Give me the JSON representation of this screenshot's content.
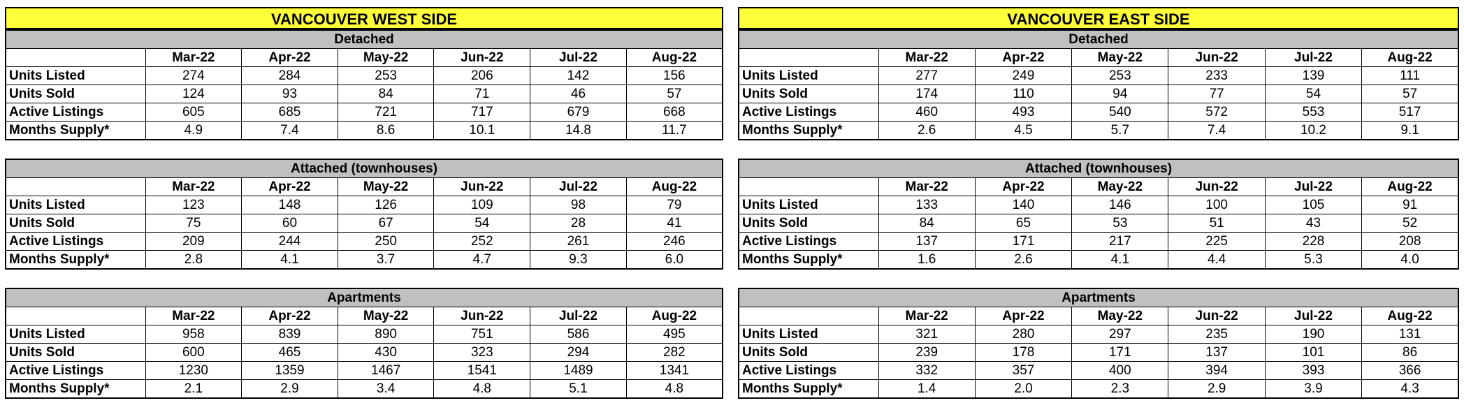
{
  "panels": [
    {
      "title": "VANCOUVER WEST SIDE",
      "sections": [
        {
          "title": "Detached",
          "months": [
            "Mar-22",
            "Apr-22",
            "May-22",
            "Jun-22",
            "Jul-22",
            "Aug-22"
          ],
          "rows": [
            {
              "label": "Units Listed",
              "values": [
                "274",
                "284",
                "253",
                "206",
                "142",
                "156"
              ]
            },
            {
              "label": "Units Sold",
              "values": [
                "124",
                "93",
                "84",
                "71",
                "46",
                "57"
              ]
            },
            {
              "label": "Active Listings",
              "values": [
                "605",
                "685",
                "721",
                "717",
                "679",
                "668"
              ]
            },
            {
              "label": "Months Supply*",
              "values": [
                "4.9",
                "7.4",
                "8.6",
                "10.1",
                "14.8",
                "11.7"
              ]
            }
          ]
        },
        {
          "title": "Attached (townhouses)",
          "months": [
            "Mar-22",
            "Apr-22",
            "May-22",
            "Jun-22",
            "Jul-22",
            "Aug-22"
          ],
          "rows": [
            {
              "label": "Units Listed",
              "values": [
                "123",
                "148",
                "126",
                "109",
                "98",
                "79"
              ]
            },
            {
              "label": "Units Sold",
              "values": [
                "75",
                "60",
                "67",
                "54",
                "28",
                "41"
              ]
            },
            {
              "label": "Active Listings",
              "values": [
                "209",
                "244",
                "250",
                "252",
                "261",
                "246"
              ]
            },
            {
              "label": "Months Supply*",
              "values": [
                "2.8",
                "4.1",
                "3.7",
                "4.7",
                "9.3",
                "6.0"
              ]
            }
          ]
        },
        {
          "title": "Apartments",
          "months": [
            "Mar-22",
            "Apr-22",
            "May-22",
            "Jun-22",
            "Jul-22",
            "Aug-22"
          ],
          "rows": [
            {
              "label": "Units Listed",
              "values": [
                "958",
                "839",
                "890",
                "751",
                "586",
                "495"
              ]
            },
            {
              "label": "Units Sold",
              "values": [
                "600",
                "465",
                "430",
                "323",
                "294",
                "282"
              ]
            },
            {
              "label": "Active Listings",
              "values": [
                "1230",
                "1359",
                "1467",
                "1541",
                "1489",
                "1341"
              ]
            },
            {
              "label": "Months Supply*",
              "values": [
                "2.1",
                "2.9",
                "3.4",
                "4.8",
                "5.1",
                "4.8"
              ]
            }
          ]
        }
      ]
    },
    {
      "title": "VANCOUVER EAST SIDE",
      "sections": [
        {
          "title": "Detached",
          "months": [
            "Mar-22",
            "Apr-22",
            "May-22",
            "Jun-22",
            "Jul-22",
            "Aug-22"
          ],
          "rows": [
            {
              "label": "Units Listed",
              "values": [
                "277",
                "249",
                "253",
                "233",
                "139",
                "111"
              ]
            },
            {
              "label": "Units Sold",
              "values": [
                "174",
                "110",
                "94",
                "77",
                "54",
                "57"
              ]
            },
            {
              "label": "Active Listings",
              "values": [
                "460",
                "493",
                "540",
                "572",
                "553",
                "517"
              ]
            },
            {
              "label": "Months Supply*",
              "values": [
                "2.6",
                "4.5",
                "5.7",
                "7.4",
                "10.2",
                "9.1"
              ]
            }
          ]
        },
        {
          "title": "Attached (townhouses)",
          "months": [
            "Mar-22",
            "Apr-22",
            "May-22",
            "Jun-22",
            "Jul-22",
            "Aug-22"
          ],
          "rows": [
            {
              "label": "Units Listed",
              "values": [
                "133",
                "140",
                "146",
                "100",
                "105",
                "91"
              ]
            },
            {
              "label": "Units Sold",
              "values": [
                "84",
                "65",
                "53",
                "51",
                "43",
                "52"
              ]
            },
            {
              "label": "Active Listings",
              "values": [
                "137",
                "171",
                "217",
                "225",
                "228",
                "208"
              ]
            },
            {
              "label": "Months Supply*",
              "values": [
                "1.6",
                "2.6",
                "4.1",
                "4.4",
                "5.3",
                "4.0"
              ]
            }
          ]
        },
        {
          "title": "Apartments",
          "months": [
            "Mar-22",
            "Apr-22",
            "May-22",
            "Jun-22",
            "Jul-22",
            "Aug-22"
          ],
          "rows": [
            {
              "label": "Units Listed",
              "values": [
                "321",
                "280",
                "297",
                "235",
                "190",
                "131"
              ]
            },
            {
              "label": "Units Sold",
              "values": [
                "239",
                "178",
                "171",
                "137",
                "101",
                "86"
              ]
            },
            {
              "label": "Active Listings",
              "values": [
                "332",
                "357",
                "400",
                "394",
                "393",
                "366"
              ]
            },
            {
              "label": "Months Supply*",
              "values": [
                "1.4",
                "2.0",
                "2.3",
                "2.9",
                "3.9",
                "4.3"
              ]
            }
          ]
        }
      ]
    }
  ]
}
